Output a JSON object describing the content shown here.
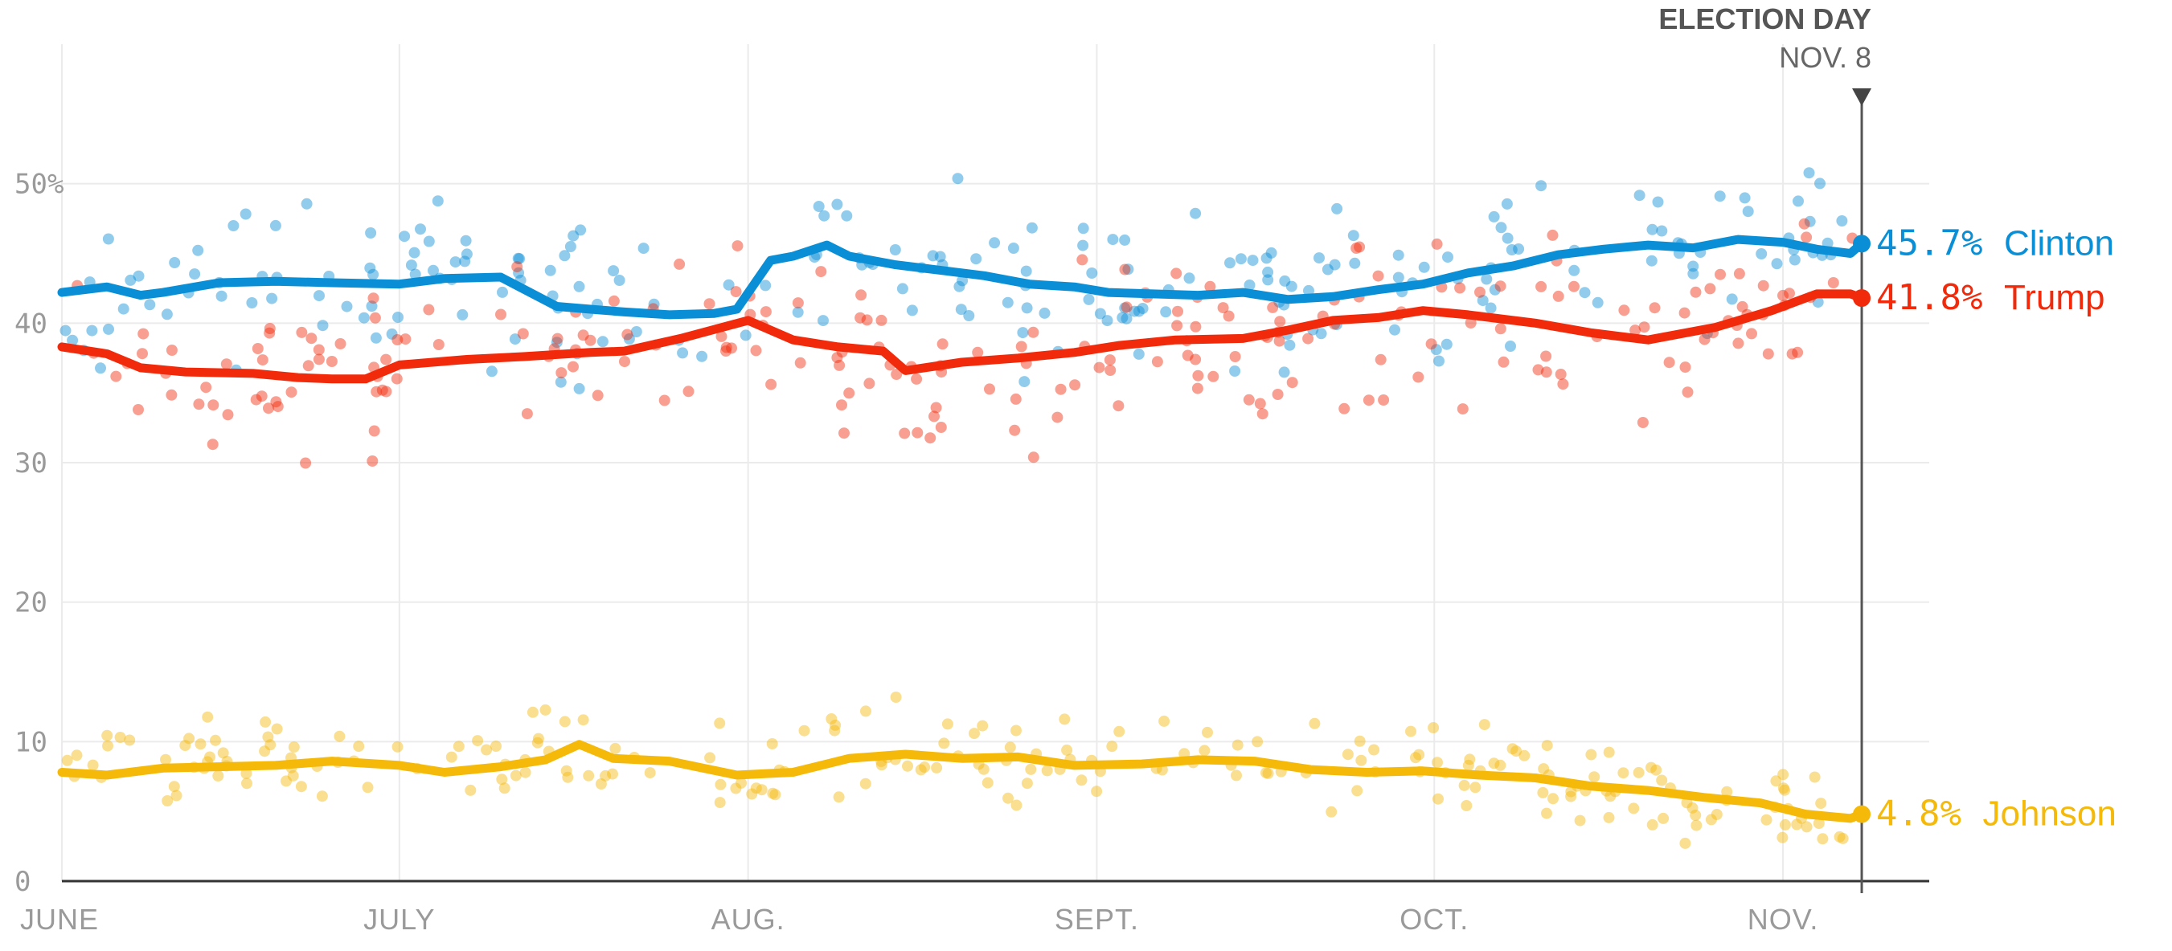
{
  "chart_data": {
    "type": "line",
    "y_unit": "%",
    "ylim": [
      0,
      60
    ],
    "yticks": [
      {
        "value": 0,
        "label": "0"
      },
      {
        "value": 10,
        "label": "10"
      },
      {
        "value": 20,
        "label": "20"
      },
      {
        "value": 30,
        "label": "30"
      },
      {
        "value": 40,
        "label": "40"
      },
      {
        "value": 50,
        "label": "50%"
      }
    ],
    "xlim": [
      "2016-06-01",
      "2016-11-14"
    ],
    "xticks": [
      {
        "date": "2016-06-01",
        "label": "JUNE"
      },
      {
        "date": "2016-07-01",
        "label": "JULY"
      },
      {
        "date": "2016-08-01",
        "label": "AUG."
      },
      {
        "date": "2016-09-01",
        "label": "SEPT."
      },
      {
        "date": "2016-10-01",
        "label": "OCT."
      },
      {
        "date": "2016-11-01",
        "label": "NOV."
      }
    ],
    "grid": true,
    "marker": {
      "date": "2016-11-08",
      "title": "ELECTION DAY",
      "date_label": "NOV. 8"
    },
    "series": [
      {
        "name": "Clinton",
        "color": "#0a8fd6",
        "end_value": 45.7,
        "end_label": "45.7%",
        "x": [
          "2016-06-01",
          "2016-06-05",
          "2016-06-08",
          "2016-06-10",
          "2016-06-15",
          "2016-06-20",
          "2016-06-25",
          "2016-07-01",
          "2016-07-05",
          "2016-07-10",
          "2016-07-15",
          "2016-07-18",
          "2016-07-21",
          "2016-07-25",
          "2016-07-29",
          "2016-07-31",
          "2016-08-03",
          "2016-08-05",
          "2016-08-08",
          "2016-08-10",
          "2016-08-14",
          "2016-08-18",
          "2016-08-22",
          "2016-08-26",
          "2016-08-30",
          "2016-09-02",
          "2016-09-06",
          "2016-09-10",
          "2016-09-14",
          "2016-09-18",
          "2016-09-22",
          "2016-09-26",
          "2016-09-30",
          "2016-10-04",
          "2016-10-08",
          "2016-10-12",
          "2016-10-16",
          "2016-10-20",
          "2016-10-24",
          "2016-10-28",
          "2016-11-01",
          "2016-11-04",
          "2016-11-07",
          "2016-11-08"
        ],
        "values": [
          42.2,
          42.6,
          42.0,
          42.2,
          42.9,
          43.0,
          42.9,
          42.8,
          43.2,
          43.3,
          41.2,
          41.0,
          40.8,
          40.6,
          40.7,
          41.0,
          44.5,
          44.8,
          45.6,
          44.8,
          44.2,
          43.8,
          43.4,
          42.8,
          42.6,
          42.2,
          42.1,
          42.0,
          42.2,
          41.7,
          41.9,
          42.4,
          42.8,
          43.6,
          44.1,
          44.9,
          45.3,
          45.6,
          45.4,
          46.0,
          45.8,
          45.3,
          45.0,
          45.7
        ]
      },
      {
        "name": "Trump",
        "color": "#f22a0c",
        "end_value": 41.8,
        "end_label": "41.8%",
        "x": [
          "2016-06-01",
          "2016-06-05",
          "2016-06-08",
          "2016-06-12",
          "2016-06-18",
          "2016-06-22",
          "2016-06-25",
          "2016-06-28",
          "2016-07-01",
          "2016-07-07",
          "2016-07-12",
          "2016-07-18",
          "2016-07-21",
          "2016-07-26",
          "2016-08-01",
          "2016-08-05",
          "2016-08-09",
          "2016-08-13",
          "2016-08-15",
          "2016-08-20",
          "2016-08-25",
          "2016-08-30",
          "2016-09-03",
          "2016-09-08",
          "2016-09-14",
          "2016-09-18",
          "2016-09-22",
          "2016-09-26",
          "2016-09-30",
          "2016-10-04",
          "2016-10-10",
          "2016-10-15",
          "2016-10-20",
          "2016-10-26",
          "2016-10-31",
          "2016-11-04",
          "2016-11-07",
          "2016-11-08"
        ],
        "values": [
          38.3,
          37.8,
          36.8,
          36.5,
          36.4,
          36.1,
          36.0,
          36.0,
          37.0,
          37.4,
          37.6,
          37.9,
          38.0,
          38.9,
          40.2,
          38.8,
          38.3,
          38.0,
          36.6,
          37.2,
          37.5,
          37.9,
          38.4,
          38.8,
          38.9,
          39.5,
          40.2,
          40.4,
          40.9,
          40.6,
          40.0,
          39.3,
          38.8,
          39.7,
          40.9,
          42.1,
          42.1,
          41.8
        ]
      },
      {
        "name": "Johnson",
        "color": "#f5b90a",
        "end_value": 4.8,
        "end_label": "4.8%",
        "x": [
          "2016-06-01",
          "2016-06-05",
          "2016-06-10",
          "2016-06-15",
          "2016-06-20",
          "2016-06-25",
          "2016-07-01",
          "2016-07-05",
          "2016-07-10",
          "2016-07-14",
          "2016-07-17",
          "2016-07-20",
          "2016-07-25",
          "2016-07-31",
          "2016-08-05",
          "2016-08-10",
          "2016-08-15",
          "2016-08-20",
          "2016-08-25",
          "2016-08-30",
          "2016-09-05",
          "2016-09-10",
          "2016-09-15",
          "2016-09-20",
          "2016-09-25",
          "2016-09-30",
          "2016-10-05",
          "2016-10-10",
          "2016-10-15",
          "2016-10-20",
          "2016-10-25",
          "2016-10-30",
          "2016-11-03",
          "2016-11-07",
          "2016-11-08"
        ],
        "values": [
          7.8,
          7.6,
          8.1,
          8.2,
          8.3,
          8.6,
          8.3,
          7.8,
          8.2,
          8.7,
          9.8,
          8.8,
          8.6,
          7.6,
          7.8,
          8.8,
          9.1,
          8.8,
          8.9,
          8.3,
          8.4,
          8.7,
          8.6,
          8.0,
          7.8,
          7.9,
          7.6,
          7.4,
          6.8,
          6.5,
          6.0,
          5.6,
          4.8,
          4.5,
          4.8
        ]
      }
    ]
  }
}
